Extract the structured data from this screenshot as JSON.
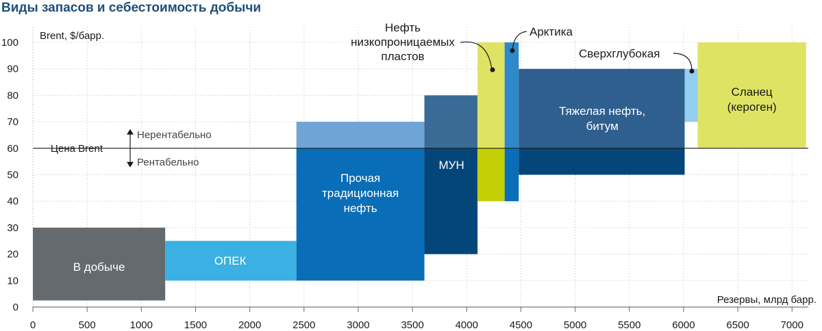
{
  "chart_data": {
    "type": "area",
    "title": "Виды запасов и себестоимость добычи",
    "ylabel": "Brent, $/барр.",
    "xlabel": "Резервы, млрд барр.",
    "xlim": [
      0,
      7150
    ],
    "ylim": [
      0,
      100
    ],
    "xticks": [
      0,
      500,
      1000,
      1500,
      2000,
      2500,
      3000,
      3500,
      4000,
      4500,
      5000,
      5500,
      6000,
      6500,
      7000
    ],
    "yticks": [
      0,
      10,
      20,
      30,
      40,
      50,
      60,
      70,
      80,
      90,
      100
    ],
    "grid": "dotted",
    "reference_line": {
      "value": 60,
      "label": "Цена Brent",
      "above_label": "Нерентабельно",
      "below_label": "Рентабельно"
    },
    "segments": [
      {
        "label_lines": [
          "В добыче"
        ],
        "x0": 0,
        "x1": 1220,
        "bands": [
          {
            "y0": 2.5,
            "y1": 30,
            "color": "#646a6e"
          }
        ]
      },
      {
        "label_lines": [
          "ОПЕК"
        ],
        "x0": 1220,
        "x1": 2430,
        "bands": [
          {
            "y0": 10,
            "y1": 25,
            "color": "#3bb0e2"
          }
        ]
      },
      {
        "label_lines": [
          "Прочая",
          "традиционная",
          "нефть"
        ],
        "x0": 2430,
        "x1": 3610,
        "bands": [
          {
            "y0": 10,
            "y1": 60,
            "color": "#0a6db7"
          },
          {
            "y0": 60,
            "y1": 70,
            "color": "#6fa4d6"
          }
        ]
      },
      {
        "label_lines": [
          "МУН"
        ],
        "x0": 3610,
        "x1": 4100,
        "bands": [
          {
            "y0": 20,
            "y1": 60,
            "color": "#05467a"
          },
          {
            "y0": 60,
            "y1": 80,
            "color": "#3a6b96"
          }
        ]
      },
      {
        "label_lines": [
          "Нефть",
          "низкопроницаемых",
          "пластов"
        ],
        "x0": 4100,
        "x1": 4350,
        "bands": [
          {
            "y0": 40,
            "y1": 60,
            "color": "#c5cf06"
          },
          {
            "y0": 60,
            "y1": 100,
            "color": "#dfe363"
          }
        ]
      },
      {
        "label_lines": [
          "Арктика"
        ],
        "x0": 4350,
        "x1": 4480,
        "bands": [
          {
            "y0": 40,
            "y1": 60,
            "color": "#0a6db7"
          },
          {
            "y0": 60,
            "y1": 100,
            "color": "#2e88c9"
          }
        ]
      },
      {
        "label_lines": [
          "Тяжелая нефть,",
          "битум"
        ],
        "x0": 4480,
        "x1": 6010,
        "bands": [
          {
            "y0": 50,
            "y1": 60,
            "color": "#05467a"
          },
          {
            "y0": 60,
            "y1": 90,
            "color": "#2e5f8e"
          }
        ]
      },
      {
        "label_lines": [
          "Сверхглубокая"
        ],
        "x0": 6010,
        "x1": 6130,
        "bands": [
          {
            "y0": 70,
            "y1": 90,
            "color": "#93cdef"
          }
        ]
      },
      {
        "label_lines": [
          "Сланец",
          "(кероген)"
        ],
        "x0": 6130,
        "x1": 7130,
        "bands": [
          {
            "y0": 60,
            "y1": 100,
            "color": "#dfe363"
          }
        ]
      }
    ]
  }
}
